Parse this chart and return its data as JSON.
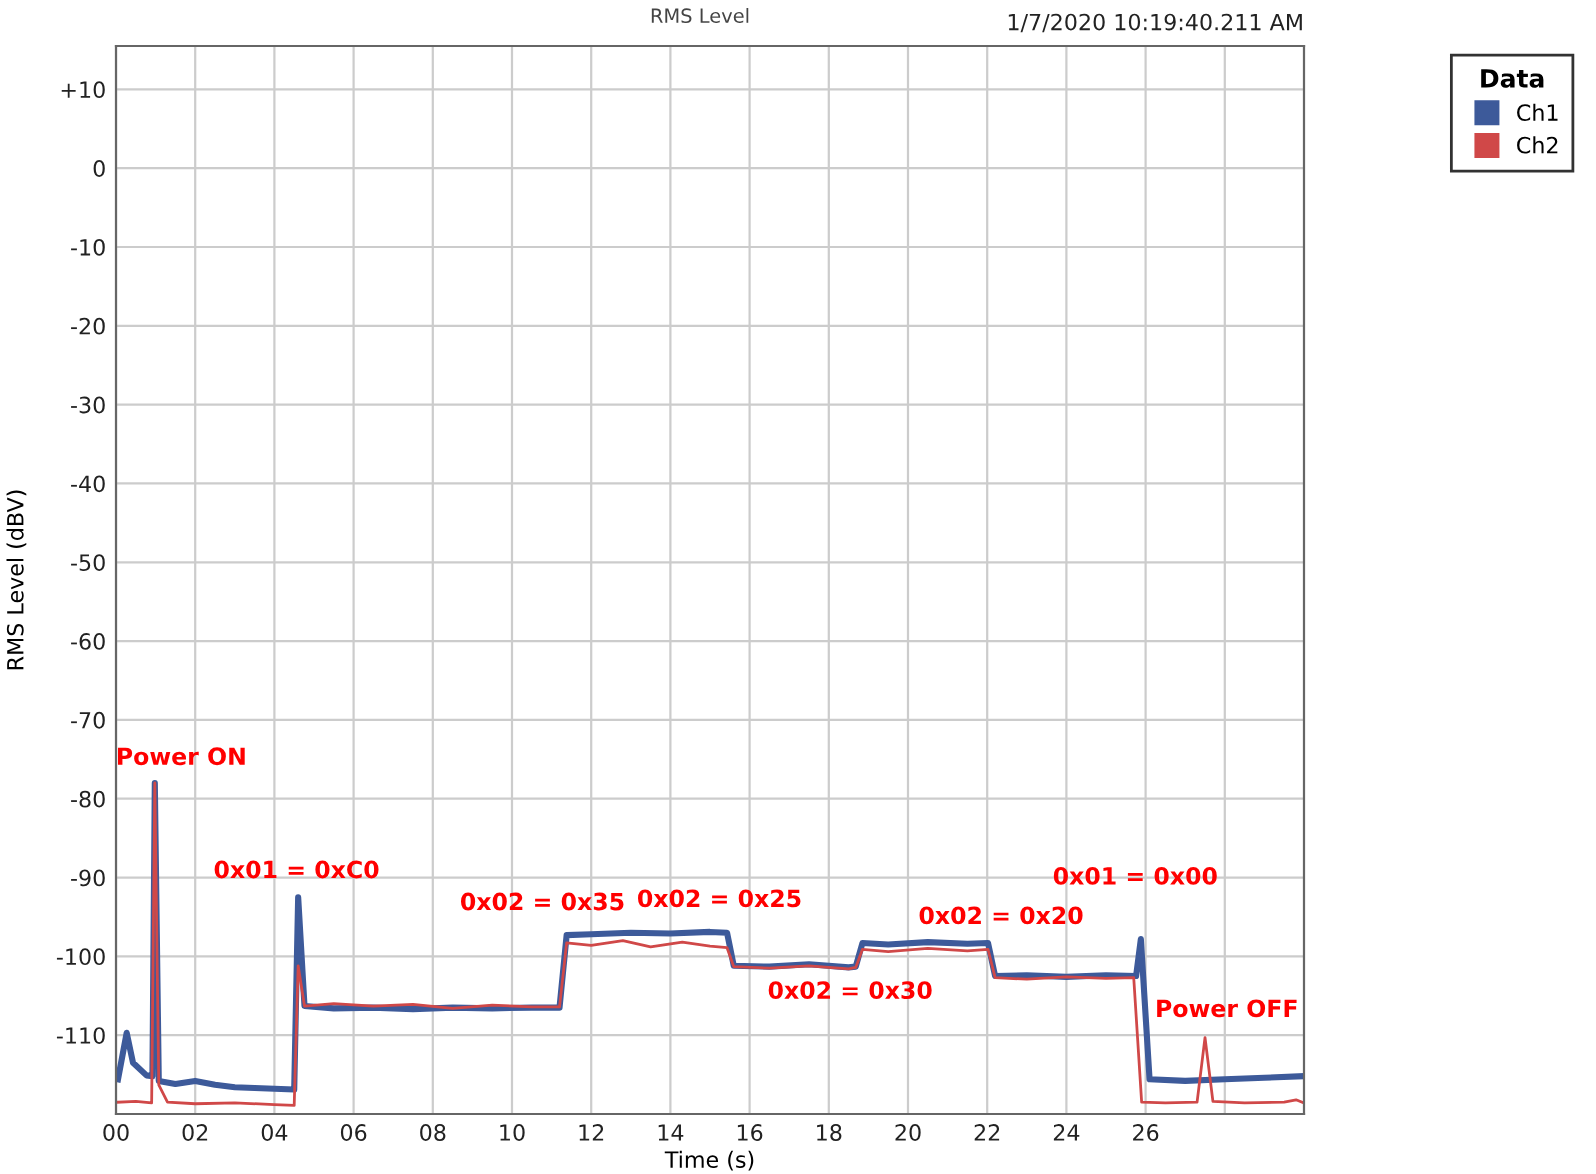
{
  "chart_data": {
    "type": "line",
    "title": "RMS Level",
    "xlabel": "Time (s)",
    "ylabel": "RMS Level (dBV)",
    "legend_title": "Data",
    "legend": "top right",
    "grid": true,
    "xlim": [
      0,
      30
    ],
    "ylim": [
      -120,
      15.5
    ],
    "xticks": [
      {
        "value": 0,
        "label": "00"
      },
      {
        "value": 2,
        "label": "02"
      },
      {
        "value": 4,
        "label": "04"
      },
      {
        "value": 6,
        "label": "06"
      },
      {
        "value": 8,
        "label": "08"
      },
      {
        "value": 10,
        "label": "10"
      },
      {
        "value": 12,
        "label": "12"
      },
      {
        "value": 14,
        "label": "14"
      },
      {
        "value": 16,
        "label": "16"
      },
      {
        "value": 18,
        "label": "18"
      },
      {
        "value": 20,
        "label": "20"
      },
      {
        "value": 22,
        "label": "22"
      },
      {
        "value": 24,
        "label": "24"
      },
      {
        "value": 26,
        "label": "26"
      },
      {
        "value": 28,
        "label": null
      }
    ],
    "yticks": [
      {
        "value": 10,
        "label": "+10"
      },
      0,
      -10,
      -20,
      -30,
      -40,
      -50,
      -60,
      -70,
      -80,
      -90,
      -100,
      -110
    ],
    "annotations": [
      "1/7/2020 10:19:40.211 AM",
      "Power ON",
      "0x01 = 0xC0",
      "0x02 = 0x35",
      "0x02 = 0x25",
      "0x02 = 0x30",
      "0x02 = 0x20",
      "0x01 = 0x00",
      "Power OFF"
    ],
    "series": [
      {
        "name": "Ch1",
        "color": "#3d5a9a",
        "x": [
          0.05,
          0.27,
          0.43,
          0.77,
          0.92,
          0.98,
          1.08,
          1.5,
          2.0,
          2.5,
          3.0,
          3.5,
          4.0,
          4.5,
          4.6,
          4.76,
          5.5,
          6.5,
          7.5,
          8.5,
          9.5,
          10.5,
          11.2,
          11.38,
          12.0,
          13.0,
          14.0,
          15.0,
          15.43,
          15.6,
          16.5,
          17.5,
          18.5,
          18.68,
          18.85,
          19.5,
          20.5,
          21.5,
          22.02,
          22.2,
          23.0,
          24.0,
          25.0,
          25.76,
          25.88,
          26.1,
          27.0,
          28.0,
          29.0,
          30.0
        ],
        "values": [
          -115.6,
          -109.7,
          -113.5,
          -115.1,
          -115.2,
          -78,
          -115.8,
          -116.2,
          -115.8,
          -116.3,
          -116.6,
          -116.7,
          -116.8,
          -116.9,
          -92.5,
          -106.3,
          -106.6,
          -106.5,
          -106.7,
          -106.5,
          -106.6,
          -106.5,
          -106.5,
          -97.3,
          -97.2,
          -97.0,
          -97.1,
          -96.9,
          -97.0,
          -101.2,
          -101.3,
          -101.0,
          -101.4,
          -101.3,
          -98.3,
          -98.5,
          -98.2,
          -98.4,
          -98.3,
          -102.5,
          -102.4,
          -102.6,
          -102.4,
          -102.5,
          -97.8,
          -115.6,
          -115.8,
          -115.6,
          -115.4,
          -115.2
        ]
      },
      {
        "name": "Ch2",
        "color": "#d04848",
        "x": [
          0.05,
          0.5,
          0.9,
          0.98,
          1.08,
          1.3,
          2.0,
          3.0,
          4.0,
          4.5,
          4.6,
          4.76,
          5.5,
          6.5,
          7.5,
          8.5,
          9.5,
          10.5,
          11.2,
          11.38,
          12.0,
          12.8,
          13.5,
          14.3,
          15.0,
          15.43,
          15.6,
          16.5,
          17.5,
          18.5,
          18.68,
          18.85,
          19.5,
          20.5,
          21.5,
          22.02,
          22.2,
          23.0,
          24.0,
          25.0,
          25.7,
          25.9,
          26.5,
          27.3,
          27.5,
          27.7,
          28.5,
          29.5,
          29.8,
          30.0
        ],
        "values": [
          -118.5,
          -118.4,
          -118.6,
          -78,
          -116.3,
          -118.5,
          -118.7,
          -118.6,
          -118.8,
          -118.9,
          -101.2,
          -106.3,
          -106.0,
          -106.3,
          -106.1,
          -106.6,
          -106.2,
          -106.4,
          -106.4,
          -98.3,
          -98.6,
          -98.0,
          -98.8,
          -98.2,
          -98.7,
          -98.9,
          -101.3,
          -101.5,
          -101.2,
          -101.6,
          -101.4,
          -99.1,
          -99.4,
          -99.0,
          -99.3,
          -99.1,
          -102.7,
          -102.9,
          -102.6,
          -102.8,
          -102.7,
          -118.5,
          -118.6,
          -118.5,
          -110.3,
          -118.4,
          -118.6,
          -118.5,
          -118.2,
          -118.6
        ]
      }
    ]
  }
}
